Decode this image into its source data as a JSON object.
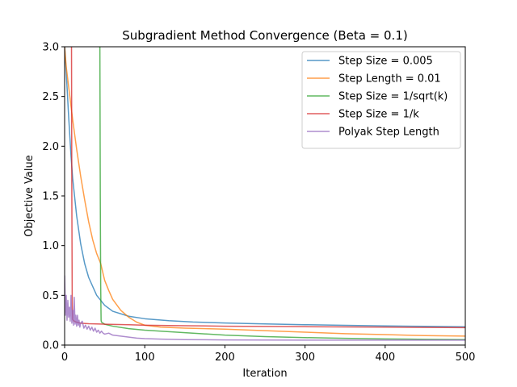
{
  "chart_data": {
    "type": "line",
    "title": "Subgradient Method Convergence (Beta = 0.1)",
    "xlabel": "Iteration",
    "ylabel": "Objective Value",
    "xlim": [
      0,
      500
    ],
    "ylim": [
      0,
      3.0
    ],
    "x_ticks": [
      "0",
      "100",
      "200",
      "300",
      "400",
      "500"
    ],
    "y_ticks": [
      "0.0",
      "0.5",
      "1.0",
      "1.5",
      "2.0",
      "2.5",
      "3.0"
    ],
    "grid": false,
    "legend_position": "top-right",
    "series": [
      {
        "name": "Step Size = 0.005",
        "color": "#1f77b4",
        "x": [
          0,
          2,
          5,
          8,
          10,
          15,
          20,
          25,
          30,
          40,
          50,
          60,
          80,
          100,
          130,
          160,
          200,
          250,
          300,
          350,
          400,
          450,
          500
        ],
        "y": [
          3.0,
          2.75,
          2.3,
          1.9,
          1.68,
          1.3,
          1.02,
          0.82,
          0.68,
          0.5,
          0.4,
          0.34,
          0.29,
          0.265,
          0.245,
          0.232,
          0.222,
          0.213,
          0.205,
          0.199,
          0.193,
          0.188,
          0.183
        ]
      },
      {
        "name": "Step Length = 0.01",
        "color": "#ff7f0e",
        "x": [
          0,
          2,
          5,
          10,
          15,
          20,
          25,
          30,
          35,
          40,
          45,
          50,
          55,
          60,
          70,
          80,
          90,
          100,
          120,
          150,
          200,
          250,
          300,
          350,
          400,
          450,
          500
        ],
        "y": [
          3.0,
          2.8,
          2.6,
          2.27,
          1.97,
          1.7,
          1.46,
          1.24,
          1.06,
          0.92,
          0.82,
          0.65,
          0.55,
          0.46,
          0.35,
          0.28,
          0.23,
          0.2,
          0.18,
          0.17,
          0.16,
          0.145,
          0.13,
          0.115,
          0.105,
          0.095,
          0.09
        ]
      },
      {
        "name": "Step Size = 1/sqrt(k)",
        "color": "#2ca02c",
        "x": [
          43,
          44,
          44.5,
          45,
          45.5,
          46,
          50,
          60,
          80,
          100,
          150,
          200,
          250,
          300,
          350,
          400,
          450,
          500
        ],
        "y": [
          3.0,
          3.0,
          1.5,
          0.6,
          0.25,
          0.23,
          0.21,
          0.19,
          0.165,
          0.15,
          0.125,
          0.1,
          0.085,
          0.075,
          0.068,
          0.062,
          0.058,
          0.055
        ]
      },
      {
        "name": "Step Size = 1/k",
        "color": "#d62728",
        "x": [
          8,
          8.6,
          9,
          9.5,
          10,
          12,
          15,
          20,
          30,
          50,
          80,
          100,
          150,
          200,
          300,
          400,
          500
        ],
        "y": [
          3.0,
          3.0,
          1.5,
          0.4,
          0.26,
          0.24,
          0.23,
          0.22,
          0.215,
          0.21,
          0.205,
          0.2,
          0.195,
          0.19,
          0.185,
          0.18,
          0.175
        ]
      },
      {
        "name": "Polyak Step Length",
        "color": "#9467bd",
        "x": [
          0,
          1,
          2,
          3,
          4,
          5,
          6,
          7,
          8,
          9,
          10,
          11,
          12,
          13,
          14,
          15,
          16,
          17,
          18,
          19,
          20,
          22,
          24,
          26,
          28,
          30,
          32,
          34,
          36,
          38,
          40,
          42,
          44,
          46,
          48,
          50,
          55,
          60,
          65,
          70,
          80,
          90,
          100,
          120,
          150,
          200,
          300,
          400,
          500
        ],
        "y": [
          0.7,
          0.3,
          0.5,
          0.25,
          0.45,
          0.28,
          0.38,
          0.24,
          0.5,
          0.22,
          0.35,
          0.2,
          0.48,
          0.21,
          0.3,
          0.19,
          0.3,
          0.2,
          0.25,
          0.18,
          0.22,
          0.24,
          0.17,
          0.2,
          0.16,
          0.19,
          0.15,
          0.18,
          0.14,
          0.17,
          0.13,
          0.15,
          0.12,
          0.14,
          0.12,
          0.11,
          0.12,
          0.1,
          0.095,
          0.09,
          0.08,
          0.07,
          0.065,
          0.06,
          0.055,
          0.052,
          0.05,
          0.05,
          0.05
        ]
      }
    ]
  }
}
